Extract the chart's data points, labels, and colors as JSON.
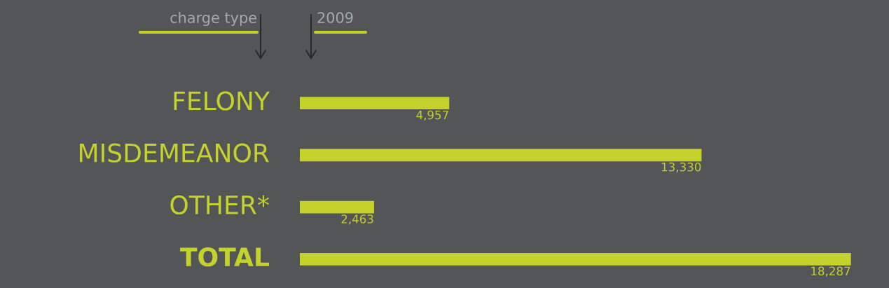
{
  "chart_data": {
    "type": "bar",
    "orientation": "horizontal",
    "ylabel": "charge type",
    "xlabel": "2009",
    "categories": [
      "FELONY",
      "MISDEMEANOR",
      "OTHER*",
      "TOTAL"
    ],
    "values": [
      4957,
      13330,
      2463,
      18287
    ],
    "value_labels": [
      "4,957",
      "13,330",
      "2,463",
      "18,287"
    ],
    "color": "#c4d22b"
  }
}
